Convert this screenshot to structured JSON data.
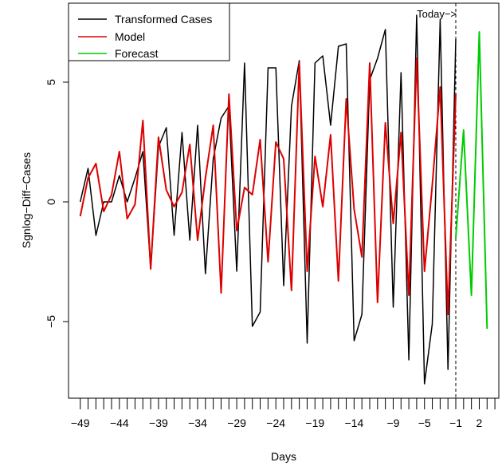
{
  "chart_data": {
    "type": "line",
    "xlabel": "Days",
    "ylabel": "Sgnlog−Diff−Cases",
    "xlim": [
      -50.5,
      4.5
    ],
    "ylim": [
      -8.2,
      8.3
    ],
    "x_tick_labels": [
      "−49",
      "−44",
      "−39",
      "−34",
      "−29",
      "−24",
      "−19",
      "−14",
      "−9",
      "−5",
      "−1",
      "2"
    ],
    "x_tick_values": [
      -49,
      -44,
      -39,
      -34,
      -29,
      -24,
      -19,
      -14,
      -9,
      -5,
      -1,
      2
    ],
    "y_tick_labels": [
      "−5",
      "0",
      "5"
    ],
    "y_tick_values": [
      -5,
      0,
      5
    ],
    "annotation": {
      "text": "Today−>",
      "x": -1
    },
    "legend": {
      "position": "top-left"
    },
    "series": [
      {
        "name": "Transformed Cases",
        "color": "#000000",
        "x": [
          -49,
          -48,
          -47,
          -46,
          -45,
          -44,
          -43,
          -42,
          -41,
          -40,
          -39,
          -38,
          -37,
          -36,
          -35,
          -34,
          -33,
          -32,
          -31,
          -30,
          -29,
          -28,
          -27,
          -26,
          -25,
          -24,
          -23,
          -22,
          -21,
          -20,
          -19,
          -18,
          -17,
          -16,
          -15,
          -14,
          -13,
          -12,
          -11,
          -10,
          -9,
          -8,
          -7,
          -6,
          -5,
          -4,
          -3,
          -2,
          -1
        ],
        "values": [
          0.0,
          1.4,
          -1.4,
          0.0,
          0.0,
          1.1,
          0.0,
          1.0,
          2.1,
          -2.8,
          2.3,
          3.1,
          -1.4,
          2.9,
          -1.6,
          3.2,
          -3.0,
          1.8,
          3.5,
          4.0,
          -2.9,
          5.8,
          -5.2,
          -4.6,
          5.6,
          5.6,
          -3.5,
          4.0,
          5.9,
          -5.9,
          5.8,
          6.1,
          3.2,
          6.5,
          6.6,
          -5.8,
          -4.7,
          5.1,
          6.0,
          7.2,
          -4.4,
          5.4,
          -6.6,
          7.8,
          -7.6,
          -5.1,
          7.6,
          -7.0,
          6.8
        ]
      },
      {
        "name": "Model",
        "color": "#dd0000",
        "x": [
          -49,
          -48,
          -47,
          -46,
          -45,
          -44,
          -43,
          -42,
          -41,
          -40,
          -39,
          -38,
          -37,
          -36,
          -35,
          -34,
          -33,
          -32,
          -31,
          -30,
          -29,
          -28,
          -27,
          -26,
          -25,
          -24,
          -23,
          -22,
          -21,
          -20,
          -19,
          -18,
          -17,
          -16,
          -15,
          -14,
          -13,
          -12,
          -11,
          -10,
          -9,
          -8,
          -7,
          -6,
          -5,
          -4,
          -3,
          -2,
          -1
        ],
        "values": [
          -0.6,
          1.0,
          1.6,
          -0.4,
          0.3,
          2.1,
          -0.7,
          -0.1,
          3.4,
          -2.8,
          2.7,
          0.5,
          -0.2,
          0.4,
          2.4,
          -1.6,
          1.0,
          3.2,
          -3.8,
          4.5,
          -1.2,
          0.6,
          0.3,
          2.6,
          -2.5,
          2.5,
          1.8,
          -3.7,
          5.8,
          -2.9,
          1.9,
          -0.2,
          2.8,
          -3.3,
          4.3,
          -0.3,
          -2.3,
          5.8,
          -4.2,
          3.3,
          -0.9,
          2.9,
          -3.9,
          6.0,
          -2.9,
          0.7,
          4.8,
          -4.7,
          4.5
        ]
      },
      {
        "name": "Forecast",
        "color": "#00cc00",
        "x": [
          -1,
          0,
          1,
          2,
          3
        ],
        "values": [
          -1.5,
          3.0,
          -3.9,
          7.1,
          -5.3
        ]
      }
    ]
  }
}
